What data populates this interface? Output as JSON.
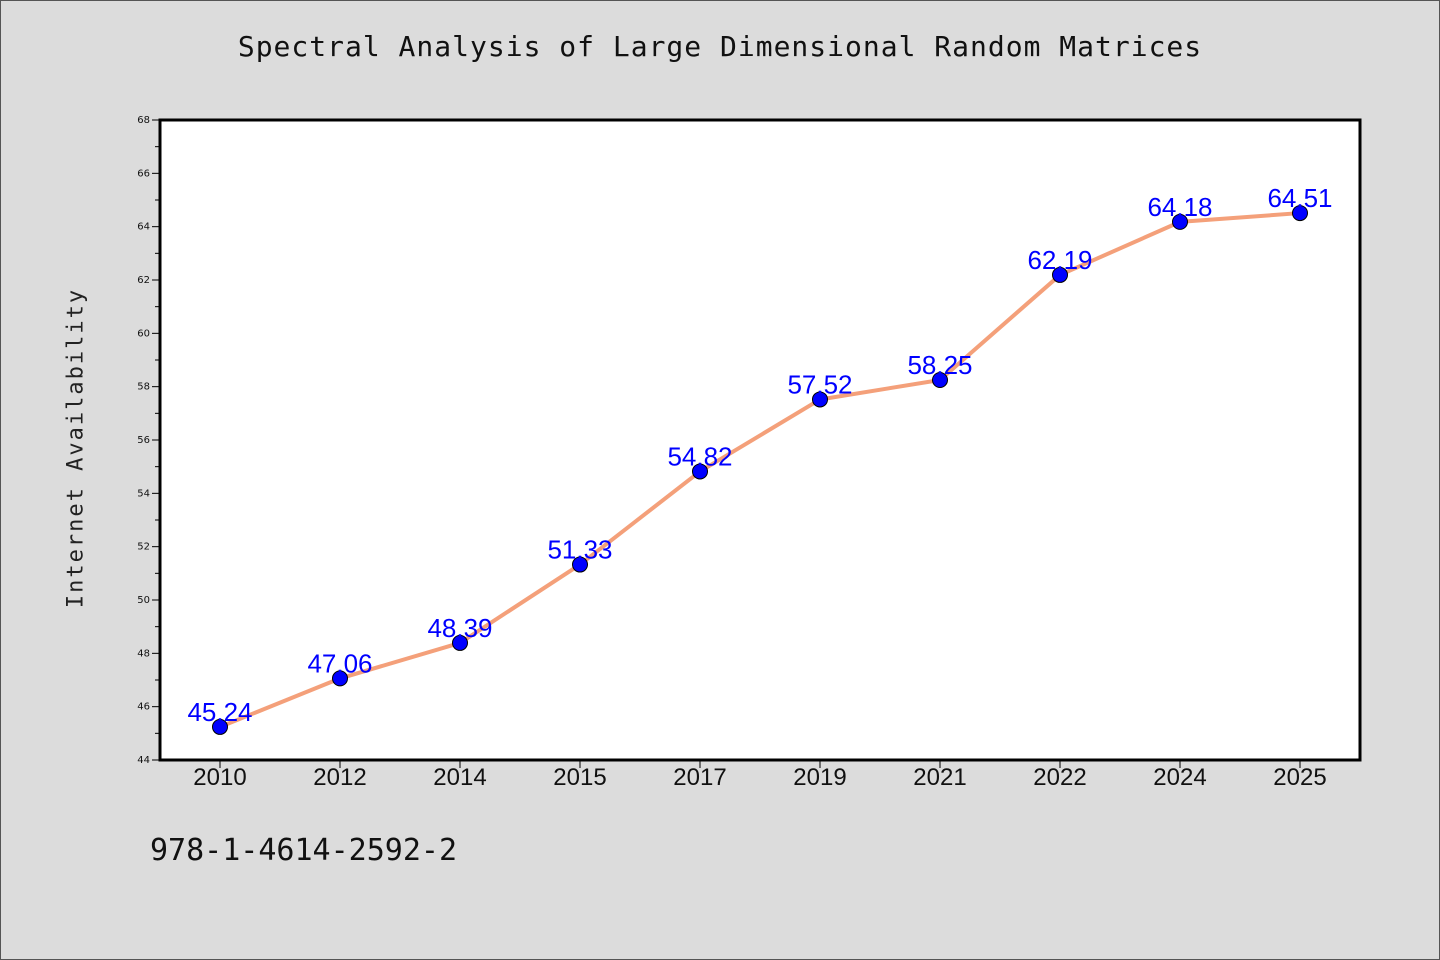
{
  "chart_data": {
    "type": "line",
    "title": "Spectral Analysis of Large Dimensional Random Matrices",
    "xlabel": "",
    "ylabel": "Internet Availability",
    "categories": [
      "2010",
      "2012",
      "2014",
      "2015",
      "2017",
      "2019",
      "2021",
      "2022",
      "2024",
      "2025"
    ],
    "series": [
      {
        "values": [
          45.24,
          47.06,
          48.39,
          51.33,
          54.82,
          57.52,
          58.25,
          62.19,
          64.18,
          64.51
        ]
      }
    ],
    "data_labels": [
      "45.24",
      "47.06",
      "48.39",
      "51.33",
      "54.82",
      "57.52",
      "58.25",
      "62.19",
      "64.18",
      "64.51"
    ],
    "ylim": [
      44,
      68
    ],
    "yticks": [
      "44",
      "46",
      "48",
      "50",
      "52",
      "54",
      "56",
      "58",
      "60",
      "62",
      "64",
      "66",
      "68"
    ],
    "grid": false,
    "legend": "none",
    "colors": {
      "line": "#f4a07a",
      "marker": "#0000ff",
      "labels": "#0000ff",
      "background": "#dcdcdc",
      "plot_area": "#ffffff"
    }
  },
  "footer": {
    "isbn": "978-1-4614-2592-2"
  }
}
